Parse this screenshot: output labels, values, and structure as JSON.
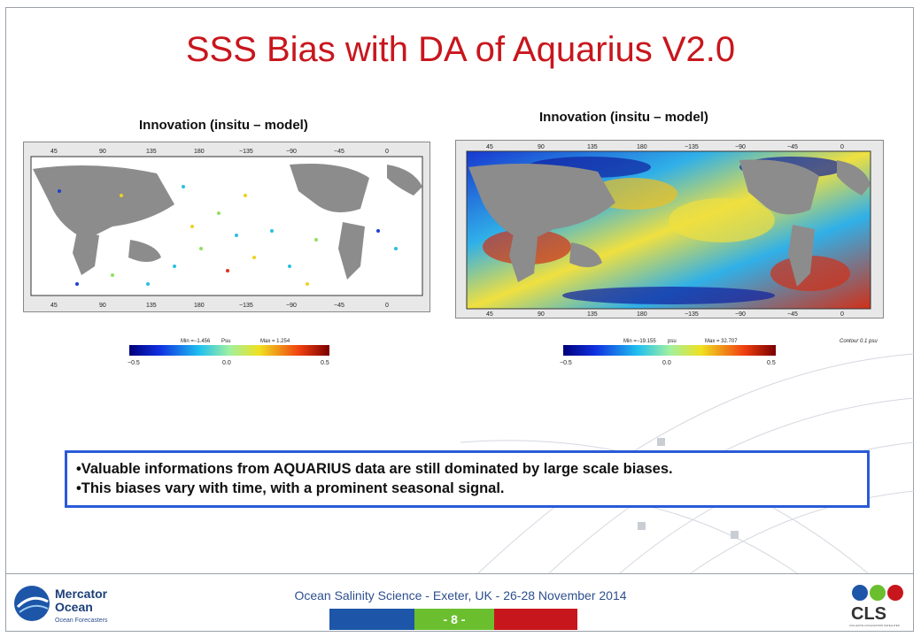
{
  "slide": {
    "title": "SSS Bias with DA of Aquarius V2.0",
    "left_panel": {
      "title": "Innovation (insitu – model)",
      "top_ticks": [
        "45",
        "90",
        "135",
        "180",
        "−135",
        "−90",
        "−45",
        "0"
      ],
      "bottom_ticks": [
        "45",
        "90",
        "135",
        "180",
        "−135",
        "−90",
        "−45",
        "0"
      ],
      "left_ticks": [
        "60",
        "30",
        "0",
        "−30",
        "−60"
      ],
      "colorbar": {
        "min_label": "Min =−1.456",
        "unit": "Psu",
        "max_label": "Max = 1.254",
        "ticks": [
          "−0.5",
          "0.0",
          "0.5"
        ]
      }
    },
    "right_panel": {
      "title": "Innovation (insitu – model)",
      "top_ticks": [
        "45",
        "90",
        "135",
        "180",
        "−135",
        "−90",
        "−45",
        "0"
      ],
      "bottom_ticks": [
        "45",
        "90",
        "135",
        "180",
        "−135",
        "−90",
        "−45",
        "0"
      ],
      "left_ticks": [
        "60",
        "45",
        "30",
        "15",
        "0",
        "−15",
        "−30",
        "−45",
        "−60"
      ],
      "colorbar": {
        "min_label": "Min =−19.155",
        "unit": "psu",
        "max_label": "Max = 32.707",
        "ticks": [
          "−0.5",
          "0.0",
          "0.5"
        ]
      },
      "note": "Contour 0.1 psu"
    },
    "bullets": [
      "•Valuable informations from AQUARIUS data are still dominated by large scale biases.",
      "•This biases vary with time, with a prominent seasonal signal."
    ],
    "footer": {
      "text": "Ocean Salinity Science - Exeter, UK - 26-28 November 2014",
      "page": "- 8 -",
      "bar_colors": [
        "#1d56a8",
        "#6bbf2f",
        "#c8161d"
      ]
    },
    "logos": {
      "left_main": "Mercator",
      "left_sub": "Ocean",
      "left_tag": "Ocean Forecasters",
      "right_main": "CLS",
      "right_tag": "COLLECTE LOCALISATION SATELLITES"
    },
    "colors": {
      "title": "#c8161d",
      "box_border": "#2a5bd7",
      "footer_text": "#2e4f8f"
    }
  }
}
